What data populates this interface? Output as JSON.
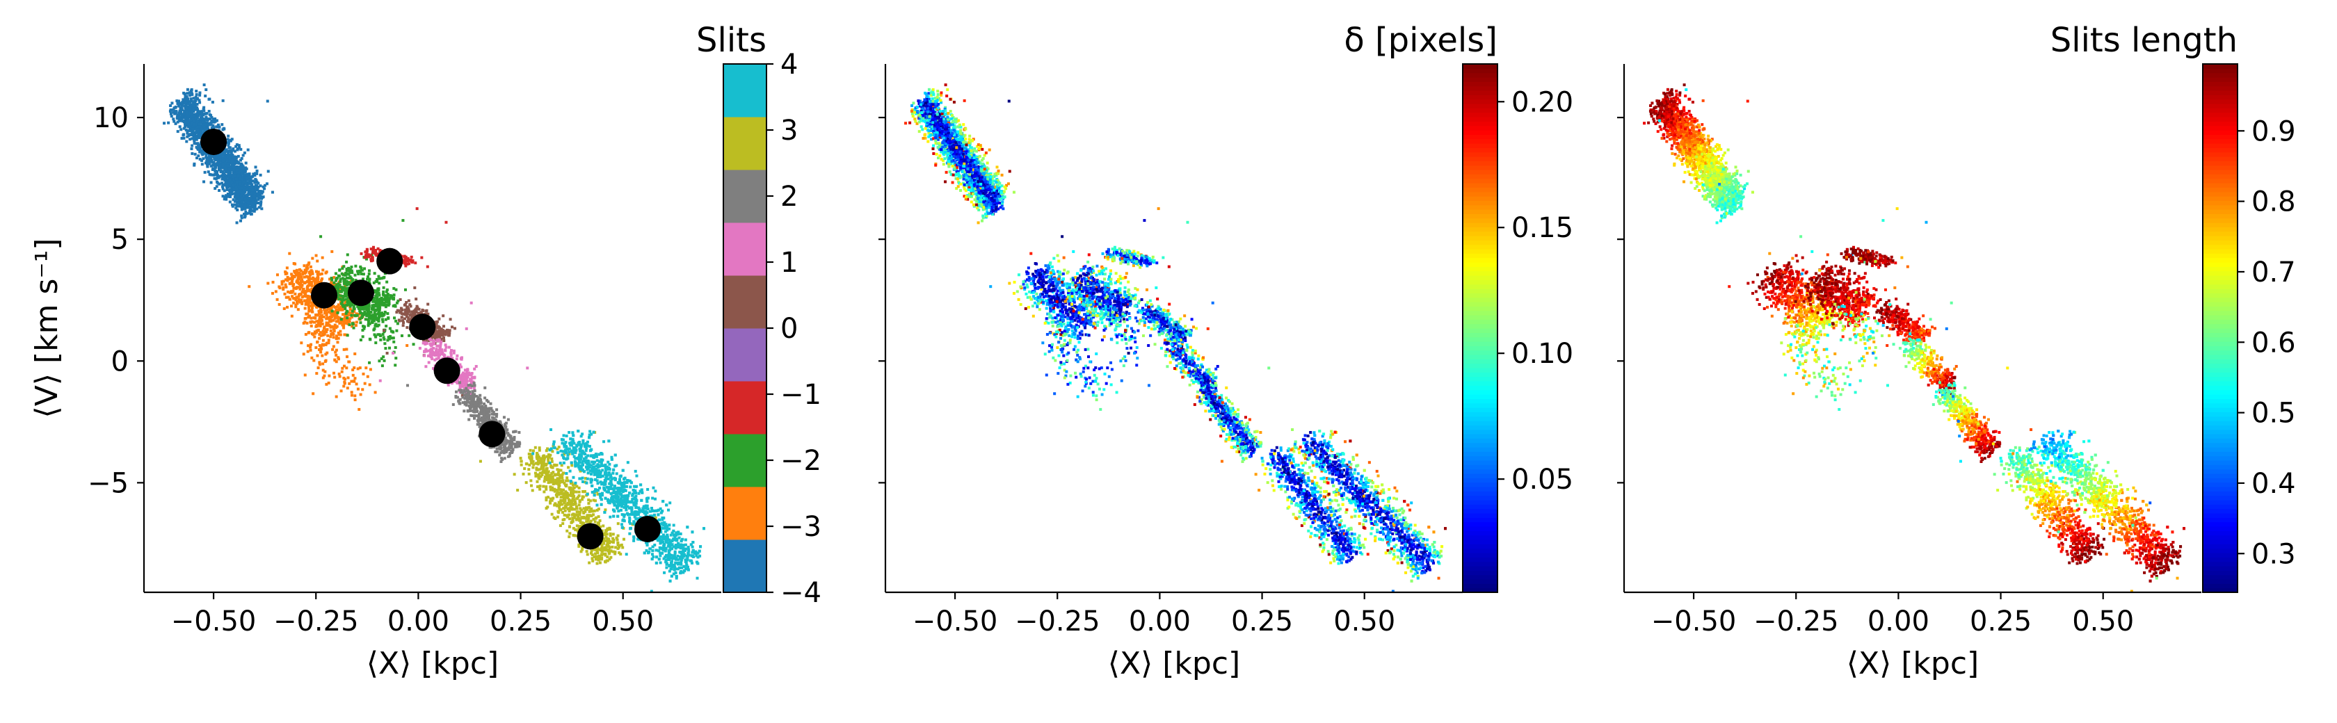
{
  "chart_data": [
    {
      "type": "scatter",
      "panel": "slits",
      "xlabel": "⟨X⟩ [kpc]",
      "ylabel": "⟨V⟩ [km s⁻¹]",
      "xlim": [
        -0.67,
        0.74
      ],
      "ylim": [
        -9.5,
        12.2
      ],
      "xticks": [
        -0.5,
        -0.25,
        0.0,
        0.25,
        0.5
      ],
      "xtick_labels": [
        "−0.50",
        "−0.25",
        "0.00",
        "0.25",
        "0.50"
      ],
      "yticks": [
        -5,
        0,
        5,
        10
      ],
      "ytick_labels": [
        "−5",
        "0",
        "5",
        "10"
      ],
      "colorbar": {
        "title": "Slits",
        "ticks": [
          -4,
          -3,
          -2,
          -1,
          0,
          1,
          2,
          3,
          4
        ],
        "tick_labels": [
          "−4",
          "−3",
          "−2",
          "−1",
          "0",
          "1",
          "2",
          "3",
          "4"
        ],
        "colors": [
          "#1f77b4",
          "#ff7f0e",
          "#2ca02c",
          "#d62728",
          "#9467bd",
          "#8c564b",
          "#e377c2",
          "#7f7f7f",
          "#bcbd22",
          "#17becf"
        ]
      },
      "series": [
        {
          "slit": -4,
          "color": "#1f77b4",
          "center": [
            -0.5,
            9.0
          ]
        },
        {
          "slit": -3,
          "color": "#ff7f0e",
          "center": [
            -0.23,
            2.7
          ]
        },
        {
          "slit": -2,
          "color": "#2ca02c",
          "center": [
            -0.14,
            2.8
          ]
        },
        {
          "slit": -1,
          "color": "#d62728",
          "center": [
            -0.07,
            4.1
          ]
        },
        {
          "slit": 0,
          "color": "#8c564b",
          "center": [
            0.01,
            1.4
          ]
        },
        {
          "slit": 1,
          "color": "#e377c2",
          "center": [
            0.07,
            -0.4
          ]
        },
        {
          "slit": 2,
          "color": "#7f7f7f",
          "center": [
            0.18,
            -3.0
          ]
        },
        {
          "slit": 3,
          "color": "#bcbd22",
          "center": [
            0.42,
            -7.2
          ]
        },
        {
          "slit": 4,
          "color": "#17becf",
          "center": [
            0.56,
            -6.9
          ]
        }
      ],
      "black_markers": [
        [
          -0.5,
          9.0
        ],
        [
          -0.23,
          2.7
        ],
        [
          -0.14,
          2.8
        ],
        [
          -0.07,
          4.1
        ],
        [
          0.01,
          1.4
        ],
        [
          0.07,
          -0.4
        ],
        [
          0.18,
          -3.0
        ],
        [
          0.42,
          -7.2
        ],
        [
          0.56,
          -6.9
        ]
      ]
    },
    {
      "type": "scatter",
      "panel": "delta",
      "xlabel": "⟨X⟩ [kpc]",
      "xlim": [
        -0.67,
        0.74
      ],
      "ylim": [
        -9.5,
        12.2
      ],
      "xticks": [
        -0.5,
        -0.25,
        0.0,
        0.25,
        0.5
      ],
      "xtick_labels": [
        "−0.50",
        "−0.25",
        "0.00",
        "0.25",
        "0.50"
      ],
      "colorbar": {
        "title": "δ [pixels]",
        "range": [
          0.005,
          0.215
        ],
        "ticks": [
          0.05,
          0.1,
          0.15,
          0.2
        ],
        "tick_labels": [
          "0.05",
          "0.10",
          "0.15",
          "0.20"
        ],
        "colormap": "jet"
      }
    },
    {
      "type": "scatter",
      "panel": "length",
      "xlabel": "⟨X⟩ [kpc]",
      "xlim": [
        -0.67,
        0.74
      ],
      "ylim": [
        -9.5,
        12.2
      ],
      "xticks": [
        -0.5,
        -0.25,
        0.0,
        0.25,
        0.5
      ],
      "xtick_labels": [
        "−0.50",
        "−0.25",
        "0.00",
        "0.25",
        "0.50"
      ],
      "colorbar": {
        "title": "Slits length",
        "range": [
          0.245,
          0.995
        ],
        "ticks": [
          0.3,
          0.4,
          0.5,
          0.6,
          0.7,
          0.8,
          0.9
        ],
        "tick_labels": [
          "0.3",
          "0.4",
          "0.5",
          "0.6",
          "0.7",
          "0.8",
          "0.9"
        ],
        "colormap": "jet"
      }
    }
  ]
}
